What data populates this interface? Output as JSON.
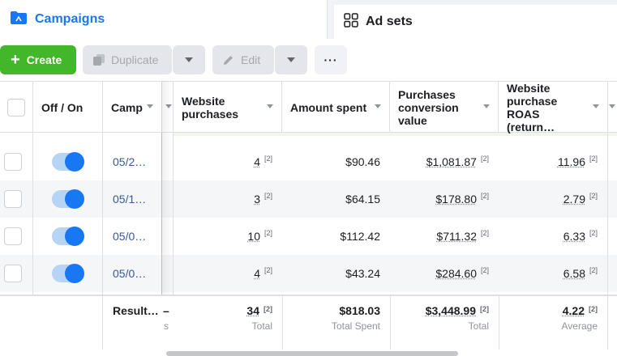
{
  "tabs": {
    "campaigns": {
      "label": "Campaigns",
      "icon": "folder-icon",
      "active": true
    },
    "adsets": {
      "label": "Ad sets",
      "icon": "grid-icon"
    }
  },
  "toolbar": {
    "create_label": "Create",
    "duplicate_label": "Duplicate",
    "edit_label": "Edit",
    "more_label": "···"
  },
  "table": {
    "headers": {
      "toggle": "Off / On",
      "campaign": "Camp",
      "website_purchases": "Website purchases",
      "amount_spent": "Amount spent",
      "purchases_value": "Purchases conversion value",
      "roas": "Website purchase ROAS (return…"
    },
    "rows": [
      {
        "campaign": "05/2…",
        "on": true,
        "website_purchases": "4",
        "amount_spent": "$90.46",
        "purchases_value": "$1,081.87",
        "roas": "11.96",
        "footnote": "[2]"
      },
      {
        "campaign": "05/1…",
        "on": true,
        "website_purchases": "3",
        "amount_spent": "$64.15",
        "purchases_value": "$178.80",
        "roas": "2.79",
        "footnote": "[2]"
      },
      {
        "campaign": "05/0…",
        "on": true,
        "website_purchases": "10",
        "amount_spent": "$112.42",
        "purchases_value": "$711.32",
        "roas": "6.33",
        "footnote": "[2]"
      },
      {
        "campaign": "05/0…",
        "on": true,
        "website_purchases": "4",
        "amount_spent": "$43.24",
        "purchases_value": "$284.60",
        "roas": "6.58",
        "footnote": "[2]"
      }
    ],
    "totals": {
      "label": "Result…",
      "label_dash": "–",
      "label_sub": "s",
      "website_purchases": "34",
      "website_purchases_sub": "Total",
      "amount_spent": "$818.03",
      "amount_spent_sub": "Total Spent",
      "purchases_value": "$3,448.99",
      "purchases_value_sub": "Total",
      "roas": "4.22",
      "roas_sub": "Average",
      "footnote": "[2]"
    }
  },
  "colors": {
    "accent": "#1877f2",
    "create_button": "#42b72a",
    "link": "#385898"
  }
}
